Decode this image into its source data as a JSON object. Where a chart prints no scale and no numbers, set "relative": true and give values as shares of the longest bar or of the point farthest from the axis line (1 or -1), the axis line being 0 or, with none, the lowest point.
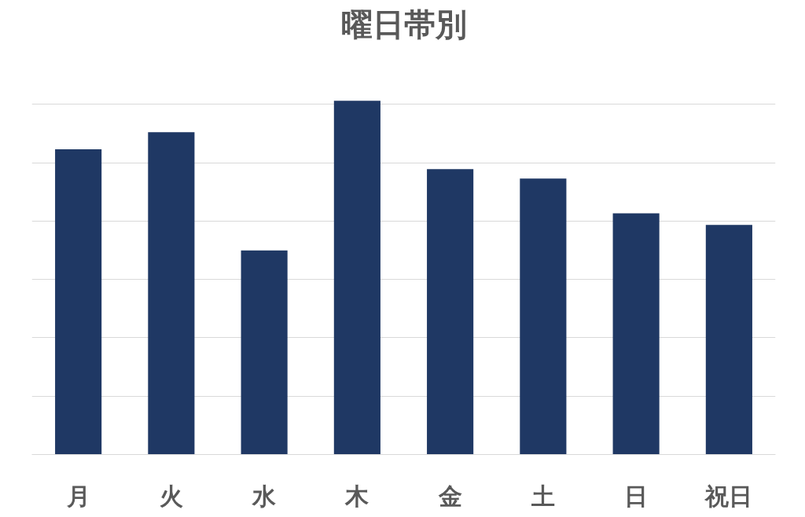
{
  "chart_data": {
    "type": "bar",
    "title": "曜日帯別",
    "categories": [
      "月",
      "火",
      "水",
      "木",
      "金",
      "土",
      "日",
      "祝日"
    ],
    "values": [
      0.863,
      0.911,
      0.577,
      1,
      0.807,
      0.78,
      0.682,
      0.649
    ],
    "color": "#1f3864",
    "relative": true,
    "grid": "y"
  }
}
